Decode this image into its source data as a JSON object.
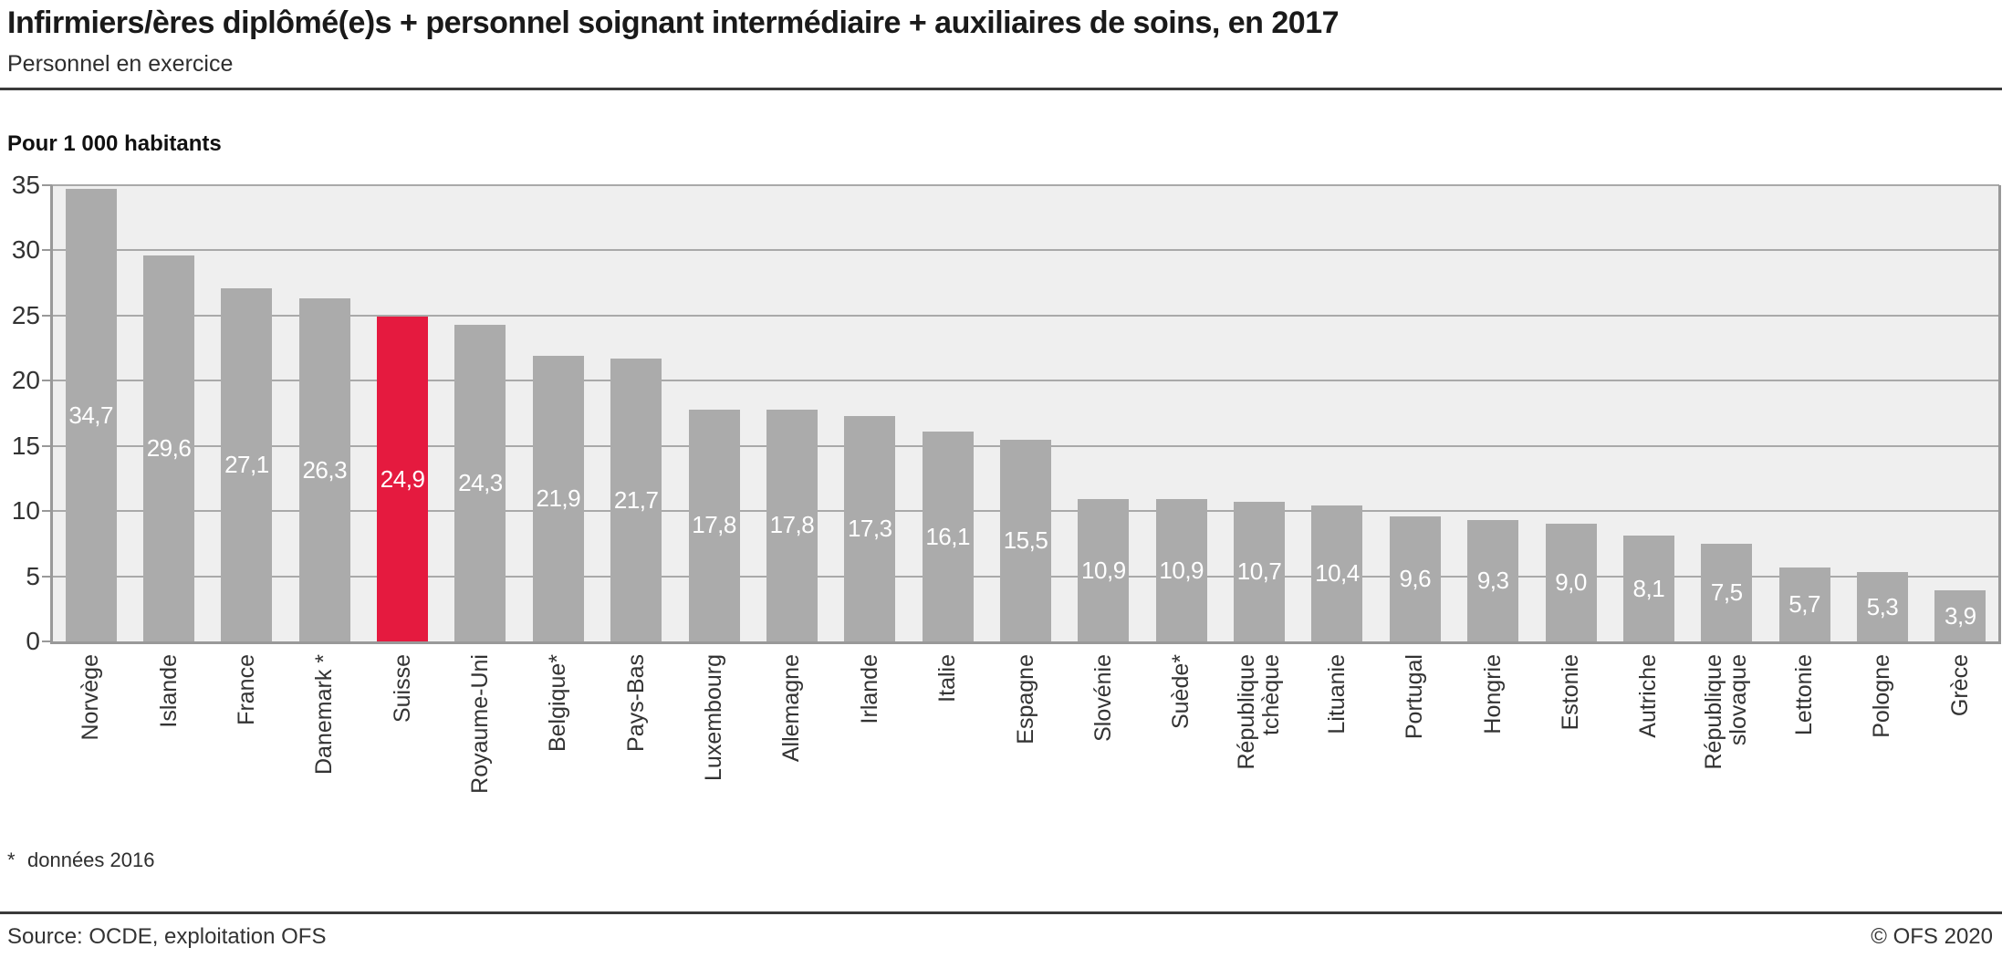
{
  "header": {
    "title": "Infirmiers/ères diplômé(e)s + personnel soignant intermédiaire + auxiliaires de soins, en 2017",
    "subtitle": "Personnel en exercice"
  },
  "chart_data": {
    "type": "bar",
    "title": "Infirmiers/ères diplômé(e)s + personnel soignant intermédiaire + auxiliaires de soins, en 2017",
    "subtitle": "Personnel en exercice",
    "unit_label": "Pour 1 000 habitants",
    "categories": [
      "Norvège",
      "Islande",
      "France",
      "Danemark *",
      "Suisse",
      "Royaume-Uni",
      "Belgique*",
      "Pays-Bas",
      "Luxembourg",
      "Allemagne",
      "Irlande",
      "Italie",
      "Espagne",
      "Slovénie",
      "Suède*",
      "République tchèque",
      "Lituanie",
      "Portugal",
      "Hongrie",
      "Estonie",
      "Autriche",
      "République slovaque",
      "Lettonie",
      "Pologne",
      "Grèce"
    ],
    "category_lines": [
      [
        "Norvège"
      ],
      [
        "Islande"
      ],
      [
        "France"
      ],
      [
        "Danemark *"
      ],
      [
        "Suisse"
      ],
      [
        "Royaume-Uni"
      ],
      [
        "Belgique*"
      ],
      [
        "Pays-Bas"
      ],
      [
        "Luxembourg"
      ],
      [
        "Allemagne"
      ],
      [
        "Irlande"
      ],
      [
        "Italie"
      ],
      [
        "Espagne"
      ],
      [
        "Slovénie"
      ],
      [
        "Suède*"
      ],
      [
        "République",
        "tchèque"
      ],
      [
        "Lituanie"
      ],
      [
        "Portugal"
      ],
      [
        "Hongrie"
      ],
      [
        "Estonie"
      ],
      [
        "Autriche"
      ],
      [
        "République",
        "slovaque"
      ],
      [
        "Lettonie"
      ],
      [
        "Pologne"
      ],
      [
        "Grèce"
      ]
    ],
    "values": [
      34.7,
      29.6,
      27.1,
      26.3,
      24.9,
      24.3,
      21.9,
      21.7,
      17.8,
      17.8,
      17.3,
      16.1,
      15.5,
      10.9,
      10.9,
      10.7,
      10.4,
      9.6,
      9.3,
      9.0,
      8.1,
      7.5,
      5.7,
      5.3,
      3.9
    ],
    "display_values": [
      "34,7",
      "29,6",
      "27,1",
      "26,3",
      "24,9",
      "24,3",
      "21,9",
      "21,7",
      "17,8",
      "17,8",
      "17,3",
      "16,1",
      "15,5",
      "10,9",
      "10,9",
      "10,7",
      "10,4",
      "9,6",
      "9,3",
      "9,0",
      "8,1",
      "7,5",
      "5,7",
      "5,3",
      "3,9"
    ],
    "highlight_category": "Suisse",
    "highlight_index": 4,
    "ylim": [
      0,
      35
    ],
    "yticks": [
      0,
      5,
      10,
      15,
      20,
      25,
      30,
      35
    ],
    "grid": true,
    "legend": "none",
    "colors": {
      "bar": "#ababab",
      "highlight": "#e51a3f",
      "plot_background": "#efefef",
      "grid": "#a9a9a9",
      "axis": "#999999",
      "value_label": "#ffffff"
    }
  },
  "footnote": {
    "marker": "*",
    "text": "données 2016"
  },
  "footer": {
    "source": "Source: OCDE, exploitation OFS",
    "copyright": "© OFS 2020"
  }
}
